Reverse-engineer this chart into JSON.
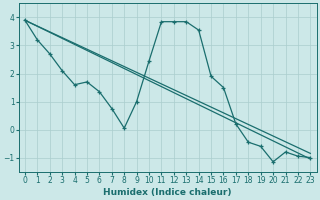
{
  "xlabel": "Humidex (Indice chaleur)",
  "bg_color": "#cce8e8",
  "grid_color": "#aacece",
  "line_color": "#1a6e6e",
  "xlim": [
    -0.5,
    23.5
  ],
  "ylim": [
    -1.5,
    4.5
  ],
  "yticks": [
    -1,
    0,
    1,
    2,
    3,
    4
  ],
  "xtick_labels": [
    "0",
    "1",
    "2",
    "3",
    "4",
    "5",
    "6",
    "7",
    "8",
    "9",
    "10",
    "11",
    "12",
    "13",
    "14",
    "15",
    "16",
    "17",
    "18",
    "19",
    "20",
    "21",
    "22",
    "23"
  ],
  "series1_x": [
    0,
    1,
    2,
    3,
    4,
    5,
    6,
    7,
    8,
    9,
    10,
    11,
    12,
    13,
    14,
    15,
    16,
    17,
    18,
    19,
    20,
    21,
    22,
    23
  ],
  "series1_y": [
    3.9,
    3.2,
    2.7,
    2.1,
    1.6,
    1.7,
    1.35,
    0.75,
    0.05,
    1.0,
    2.45,
    3.85,
    3.85,
    3.85,
    3.55,
    1.9,
    1.5,
    0.2,
    -0.45,
    -0.6,
    -1.15,
    -0.8,
    -0.95,
    -1.0
  ],
  "trend1_x": [
    0,
    23
  ],
  "trend1_y": [
    3.9,
    -0.85
  ],
  "trend2_x": [
    0,
    23
  ],
  "trend2_y": [
    3.9,
    -1.05
  ]
}
